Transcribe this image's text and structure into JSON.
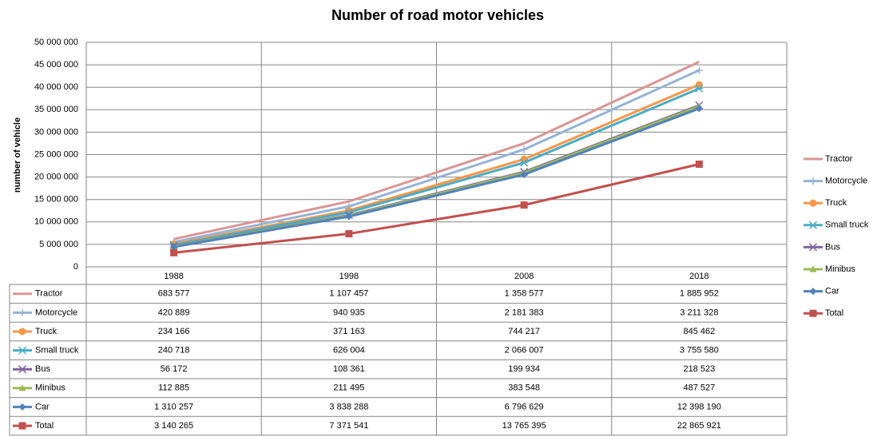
{
  "chart_data": {
    "type": "line",
    "stacked": true,
    "title": "Number of road motor vehicles",
    "y_label": "number of vehicle",
    "categories": [
      "1988",
      "1998",
      "2008",
      "2018"
    ],
    "ylim": [
      0,
      50000000
    ],
    "yticks": [
      {
        "value": 0,
        "label": "0"
      },
      {
        "value": 5000000,
        "label": "5 000 000"
      },
      {
        "value": 10000000,
        "label": "10 000 000"
      },
      {
        "value": 15000000,
        "label": "15 000 000"
      },
      {
        "value": 20000000,
        "label": "20 000 000"
      },
      {
        "value": 25000000,
        "label": "25 000 000"
      },
      {
        "value": 30000000,
        "label": "30 000 000"
      },
      {
        "value": 35000000,
        "label": "35 000 000"
      },
      {
        "value": 40000000,
        "label": "40 000 000"
      },
      {
        "value": 45000000,
        "label": "45 000 000"
      },
      {
        "value": 50000000,
        "label": "50 000 000"
      }
    ],
    "grid": true,
    "legend": "right",
    "series": [
      {
        "name": "Tractor",
        "color": "#d99694",
        "marker": "none",
        "values": [
          683577,
          1107457,
          1358577,
          1885952
        ],
        "value_labels": [
          "683 577",
          "1 107 457",
          "1 358 577",
          "1 885 952"
        ]
      },
      {
        "name": "Motorcycle",
        "color": "#95b3d7",
        "marker": "plus",
        "values": [
          420889,
          940935,
          2181383,
          3211328
        ],
        "value_labels": [
          "420 889",
          "940 935",
          "2 181 383",
          "3 211 328"
        ]
      },
      {
        "name": "Truck",
        "color": "#f79646",
        "marker": "circle",
        "values": [
          234166,
          371163,
          744217,
          845462
        ],
        "value_labels": [
          "234 166",
          "371 163",
          "744 217",
          "845 462"
        ]
      },
      {
        "name": "Small truck",
        "color": "#4bacc6",
        "marker": "star",
        "values": [
          240718,
          626004,
          2066007,
          3755580
        ],
        "value_labels": [
          "240 718",
          "626 004",
          "2 066 007",
          "3 755 580"
        ]
      },
      {
        "name": "Bus",
        "color": "#8064a2",
        "marker": "x",
        "values": [
          56172,
          108361,
          199934,
          218523
        ],
        "value_labels": [
          "56 172",
          "108 361",
          "199 934",
          "218 523"
        ]
      },
      {
        "name": "Minibus",
        "color": "#9bbb59",
        "marker": "triangle",
        "values": [
          112885,
          211495,
          383548,
          487527
        ],
        "value_labels": [
          "112 885",
          "211 495",
          "383 548",
          "487 527"
        ]
      },
      {
        "name": "Car",
        "color": "#4f81bd",
        "marker": "diamond",
        "values": [
          1310257,
          3838288,
          6796629,
          12398190
        ],
        "value_labels": [
          "1 310 257",
          "3 838 288",
          "6 796 629",
          "12 398 190"
        ]
      },
      {
        "name": "Total",
        "color": "#c0504d",
        "marker": "square",
        "values": [
          3140265,
          7371541,
          13765395,
          22865921
        ],
        "value_labels": [
          "3 140 265",
          "7 371 541",
          "13 765 395",
          "22 865 921"
        ]
      }
    ]
  }
}
